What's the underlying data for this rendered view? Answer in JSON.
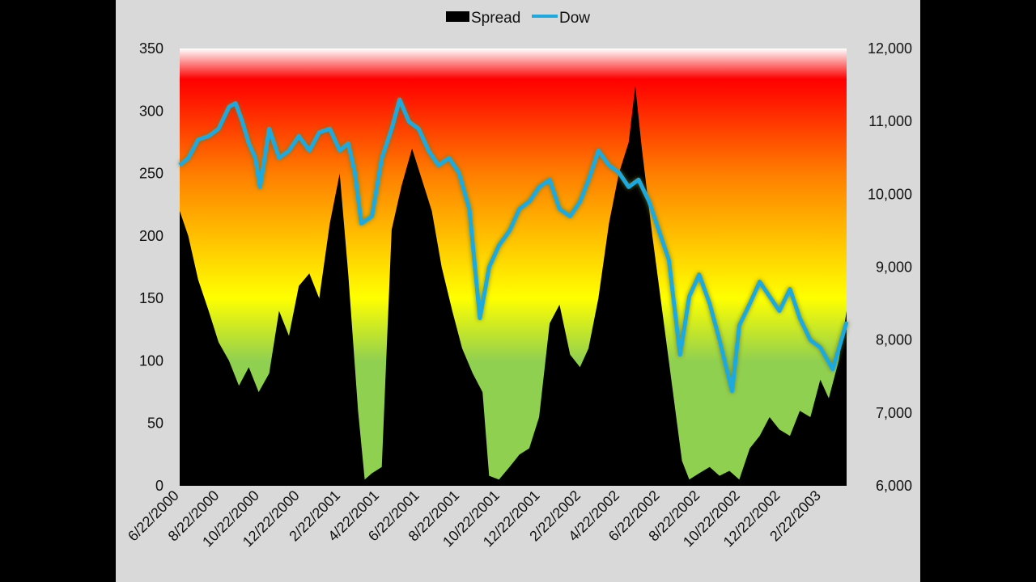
{
  "chart_data": {
    "type": "area+line",
    "legend": {
      "position": "top-center",
      "entries": [
        "Spread",
        "Dow"
      ]
    },
    "colors": {
      "spread": "#000000",
      "dow": "#1fa9de",
      "background": "#d9d9d9"
    },
    "gradient_bands": [
      "#90d050 (0-100)",
      "#ffff00 (150)",
      "#ff8000 (250)",
      "#ff0000 (320)",
      "#ffffff (350)"
    ],
    "y_left": {
      "min": 0,
      "max": 350,
      "step": 50,
      "ticks": [
        "0",
        "50",
        "100",
        "150",
        "200",
        "250",
        "300",
        "350"
      ]
    },
    "y_right": {
      "min": 6000,
      "max": 12000,
      "step": 1000,
      "ticks": [
        "6,000",
        "7,000",
        "8,000",
        "9,000",
        "10,000",
        "11,000",
        "12,000"
      ]
    },
    "x": {
      "start": "2000-06-22",
      "end": "2003-04-01",
      "tick_labels": [
        "6/22/2000",
        "8/22/2000",
        "10/22/2000",
        "12/22/2000",
        "2/22/2001",
        "4/22/2001",
        "6/22/2001",
        "8/22/2001",
        "10/22/2001",
        "12/22/2001",
        "2/22/2002",
        "4/22/2002",
        "6/22/2002",
        "8/22/2002",
        "10/22/2002",
        "12/22/2002",
        "2/22/2003"
      ]
    },
    "series": [
      {
        "name": "Spread",
        "kind": "area",
        "axis": "left",
        "points": [
          [
            "2000-06-22",
            220
          ],
          [
            "2000-07-05",
            200
          ],
          [
            "2000-07-20",
            165
          ],
          [
            "2000-08-05",
            140
          ],
          [
            "2000-08-20",
            115
          ],
          [
            "2000-09-05",
            100
          ],
          [
            "2000-09-20",
            80
          ],
          [
            "2000-10-05",
            95
          ],
          [
            "2000-10-20",
            75
          ],
          [
            "2000-11-05",
            90
          ],
          [
            "2000-11-20",
            140
          ],
          [
            "2000-12-05",
            120
          ],
          [
            "2000-12-20",
            160
          ],
          [
            "2001-01-05",
            170
          ],
          [
            "2001-01-20",
            150
          ],
          [
            "2001-02-05",
            210
          ],
          [
            "2001-02-20",
            250
          ],
          [
            "2001-03-05",
            170
          ],
          [
            "2001-03-20",
            60
          ],
          [
            "2001-03-30",
            5
          ],
          [
            "2001-04-10",
            10
          ],
          [
            "2001-04-25",
            15
          ],
          [
            "2001-05-10",
            205
          ],
          [
            "2001-05-25",
            240
          ],
          [
            "2001-06-10",
            270
          ],
          [
            "2001-06-25",
            245
          ],
          [
            "2001-07-10",
            220
          ],
          [
            "2001-07-25",
            175
          ],
          [
            "2001-08-10",
            140
          ],
          [
            "2001-08-25",
            110
          ],
          [
            "2001-09-10",
            90
          ],
          [
            "2001-09-25",
            75
          ],
          [
            "2001-10-05",
            8
          ],
          [
            "2001-10-20",
            5
          ],
          [
            "2001-11-05",
            15
          ],
          [
            "2001-11-20",
            25
          ],
          [
            "2001-12-05",
            30
          ],
          [
            "2001-12-20",
            55
          ],
          [
            "2002-01-05",
            130
          ],
          [
            "2002-01-20",
            145
          ],
          [
            "2002-02-05",
            105
          ],
          [
            "2002-02-20",
            95
          ],
          [
            "2002-03-05",
            110
          ],
          [
            "2002-03-20",
            150
          ],
          [
            "2002-04-05",
            210
          ],
          [
            "2002-04-20",
            250
          ],
          [
            "2002-05-05",
            275
          ],
          [
            "2002-05-15",
            320
          ],
          [
            "2002-05-25",
            270
          ],
          [
            "2002-06-10",
            200
          ],
          [
            "2002-06-25",
            140
          ],
          [
            "2002-07-10",
            80
          ],
          [
            "2002-07-25",
            20
          ],
          [
            "2002-08-05",
            5
          ],
          [
            "2002-08-20",
            10
          ],
          [
            "2002-09-05",
            15
          ],
          [
            "2002-09-20",
            8
          ],
          [
            "2002-10-05",
            12
          ],
          [
            "2002-10-20",
            5
          ],
          [
            "2002-11-05",
            30
          ],
          [
            "2002-11-20",
            40
          ],
          [
            "2002-12-05",
            55
          ],
          [
            "2002-12-20",
            45
          ],
          [
            "2003-01-05",
            40
          ],
          [
            "2003-01-20",
            60
          ],
          [
            "2003-02-05",
            55
          ],
          [
            "2003-02-20",
            85
          ],
          [
            "2003-03-05",
            70
          ],
          [
            "2003-03-20",
            100
          ],
          [
            "2003-04-01",
            140
          ]
        ]
      },
      {
        "name": "Dow",
        "kind": "line",
        "axis": "right",
        "points": [
          [
            "2000-06-22",
            10400
          ],
          [
            "2000-07-05",
            10500
          ],
          [
            "2000-07-20",
            10750
          ],
          [
            "2000-08-05",
            10800
          ],
          [
            "2000-08-20",
            10900
          ],
          [
            "2000-09-05",
            11200
          ],
          [
            "2000-09-15",
            11250
          ],
          [
            "2000-09-25",
            11000
          ],
          [
            "2000-10-05",
            10700
          ],
          [
            "2000-10-15",
            10500
          ],
          [
            "2000-10-22",
            10100
          ],
          [
            "2000-11-05",
            10900
          ],
          [
            "2000-11-20",
            10500
          ],
          [
            "2000-12-05",
            10600
          ],
          [
            "2000-12-20",
            10800
          ],
          [
            "2001-01-05",
            10600
          ],
          [
            "2001-01-20",
            10850
          ],
          [
            "2001-02-05",
            10900
          ],
          [
            "2001-02-20",
            10600
          ],
          [
            "2001-03-05",
            10700
          ],
          [
            "2001-03-15",
            10300
          ],
          [
            "2001-03-25",
            9600
          ],
          [
            "2001-04-10",
            9700
          ],
          [
            "2001-04-25",
            10500
          ],
          [
            "2001-05-10",
            10900
          ],
          [
            "2001-05-22",
            11300
          ],
          [
            "2001-06-05",
            11000
          ],
          [
            "2001-06-20",
            10900
          ],
          [
            "2001-07-05",
            10600
          ],
          [
            "2001-07-20",
            10400
          ],
          [
            "2001-08-05",
            10500
          ],
          [
            "2001-08-20",
            10300
          ],
          [
            "2001-09-05",
            9800
          ],
          [
            "2001-09-21",
            8300
          ],
          [
            "2001-10-05",
            9000
          ],
          [
            "2001-10-20",
            9300
          ],
          [
            "2001-11-05",
            9500
          ],
          [
            "2001-11-20",
            9800
          ],
          [
            "2001-12-05",
            9900
          ],
          [
            "2001-12-20",
            10100
          ],
          [
            "2002-01-05",
            10200
          ],
          [
            "2002-01-20",
            9800
          ],
          [
            "2002-02-05",
            9700
          ],
          [
            "2002-02-20",
            9900
          ],
          [
            "2002-03-05",
            10200
          ],
          [
            "2002-03-20",
            10600
          ],
          [
            "2002-04-05",
            10400
          ],
          [
            "2002-04-20",
            10300
          ],
          [
            "2002-05-05",
            10100
          ],
          [
            "2002-05-20",
            10200
          ],
          [
            "2002-06-05",
            9900
          ],
          [
            "2002-06-20",
            9500
          ],
          [
            "2002-07-05",
            9100
          ],
          [
            "2002-07-22",
            7800
          ],
          [
            "2002-08-05",
            8600
          ],
          [
            "2002-08-20",
            8900
          ],
          [
            "2002-09-05",
            8500
          ],
          [
            "2002-09-20",
            8000
          ],
          [
            "2002-10-09",
            7300
          ],
          [
            "2002-10-20",
            8200
          ],
          [
            "2002-11-05",
            8500
          ],
          [
            "2002-11-20",
            8800
          ],
          [
            "2002-12-05",
            8600
          ],
          [
            "2002-12-20",
            8400
          ],
          [
            "2003-01-05",
            8700
          ],
          [
            "2003-01-20",
            8300
          ],
          [
            "2003-02-05",
            8000
          ],
          [
            "2003-02-20",
            7900
          ],
          [
            "2003-03-11",
            7600
          ],
          [
            "2003-04-01",
            8250
          ]
        ]
      }
    ]
  }
}
